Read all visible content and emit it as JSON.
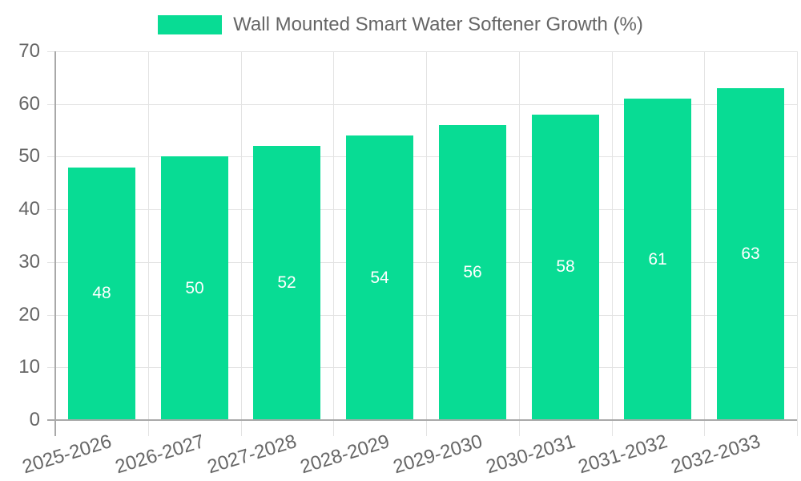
{
  "chart_data": {
    "type": "bar",
    "title": "",
    "legend": {
      "label": "Wall Mounted Smart Water Softener Growth (%)",
      "position": "top"
    },
    "categories": [
      "2025-2026",
      "2026-2027",
      "2027-2028",
      "2028-2029",
      "2029-2030",
      "2030-2031",
      "2031-2032",
      "2032-2033"
    ],
    "series": [
      {
        "name": "Wall Mounted Smart Water Softener Growth (%)",
        "values": [
          48,
          50,
          52,
          54,
          56,
          58,
          61,
          63
        ]
      }
    ],
    "xlabel": "",
    "ylabel": "",
    "ylim": [
      0,
      70
    ],
    "yticks": [
      0,
      10,
      20,
      30,
      40,
      50,
      60,
      70
    ],
    "grid": true,
    "bar_label_position": "inside-center",
    "x_label_rotation_deg": -17,
    "colors": {
      "bar": "#08DC94",
      "bar_label": "#FFFFFF",
      "axis_text": "#666666",
      "grid_line": "#E3E3E3",
      "axis_line": "#A9A9A9",
      "background": "#FFFFFF"
    }
  }
}
